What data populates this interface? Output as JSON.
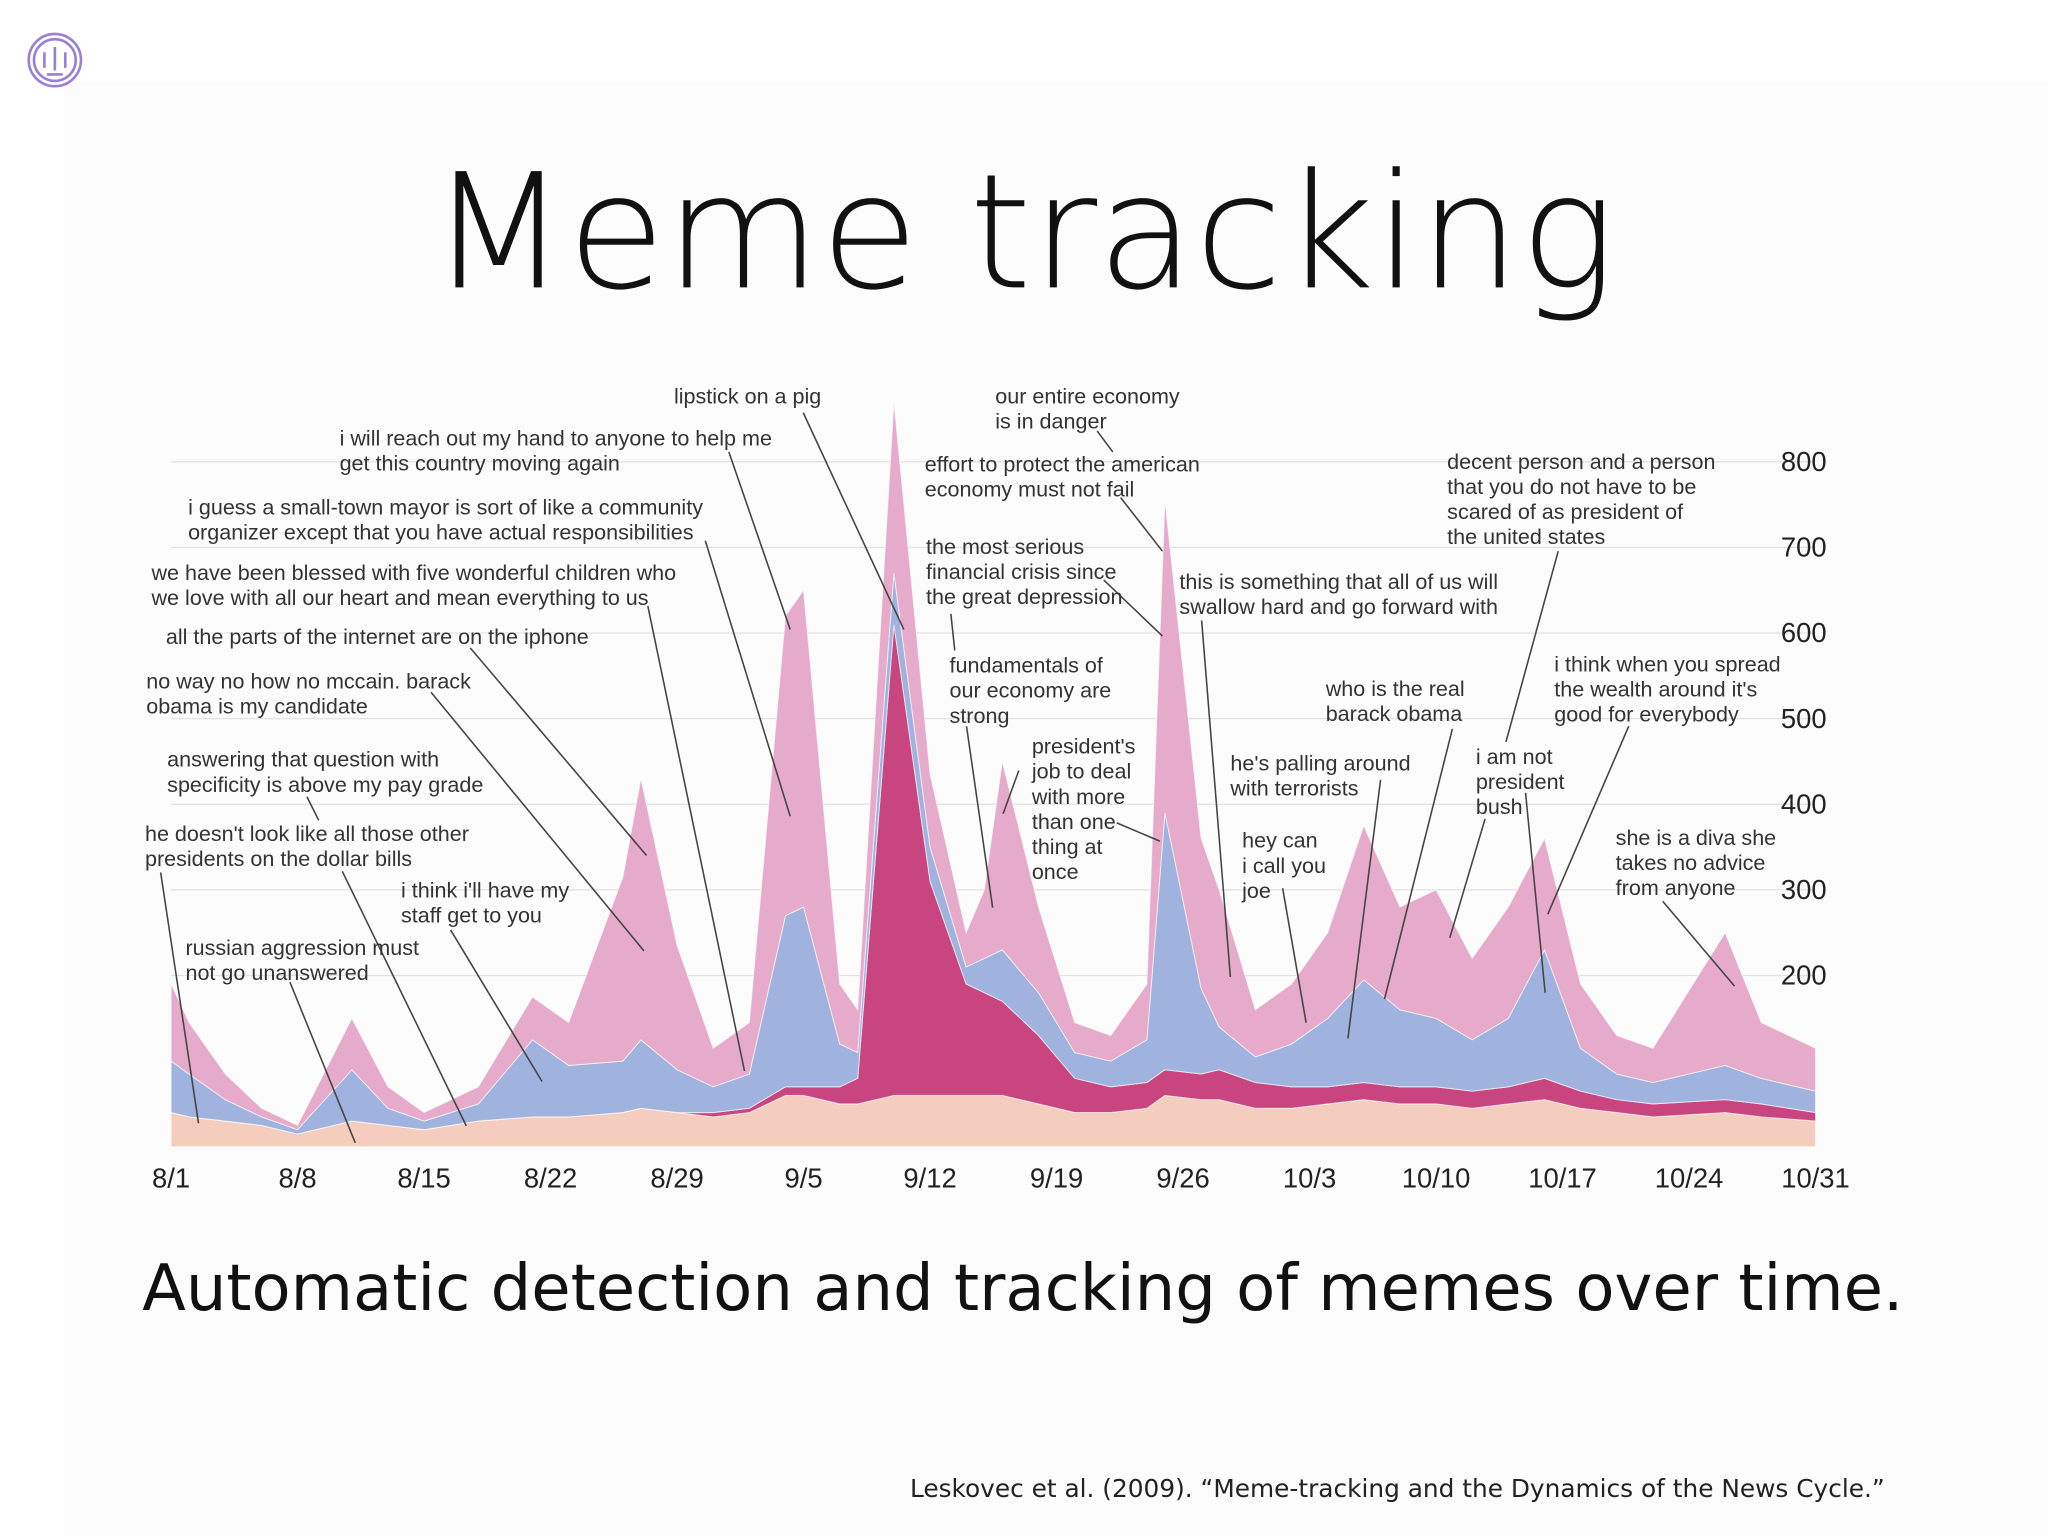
{
  "title": "Meme tracking",
  "subtitle": "Automatic detection and tracking of memes over time.",
  "citation": "Leskovec et al. (2009). “Meme-tracking and the Dynamics of the News Cycle.”",
  "chart_data": {
    "type": "area",
    "stacked": true,
    "x": [
      0,
      1,
      3,
      5,
      7,
      10,
      12,
      14,
      17,
      20,
      22,
      25,
      26,
      28,
      30,
      32,
      34,
      35,
      37,
      38,
      40,
      42,
      44,
      45,
      46,
      48,
      50,
      52,
      54,
      55,
      57,
      58,
      60,
      62,
      64,
      66,
      68,
      70,
      72,
      74,
      76,
      78,
      80,
      82,
      86,
      88,
      91
    ],
    "xlim": [
      0,
      91
    ],
    "xticks": [
      {
        "value": 0,
        "label": "8/1"
      },
      {
        "value": 7,
        "label": "8/8"
      },
      {
        "value": 14,
        "label": "8/15"
      },
      {
        "value": 21,
        "label": "8/22"
      },
      {
        "value": 28,
        "label": "8/29"
      },
      {
        "value": 35,
        "label": "9/5"
      },
      {
        "value": 42,
        "label": "9/12"
      },
      {
        "value": 49,
        "label": "9/19"
      },
      {
        "value": 56,
        "label": "9/26"
      },
      {
        "value": 63,
        "label": "10/3"
      },
      {
        "value": 70,
        "label": "10/10"
      },
      {
        "value": 77,
        "label": "10/17"
      },
      {
        "value": 84,
        "label": "10/24"
      },
      {
        "value": 91,
        "label": "10/31"
      }
    ],
    "ylim": [
      0,
      900
    ],
    "yticks": [
      200,
      300,
      400,
      500,
      600,
      700,
      800
    ],
    "grid": true,
    "series": [
      {
        "color": "#f4cdbf",
        "values": [
          40,
          35,
          30,
          25,
          15,
          30,
          25,
          20,
          30,
          35,
          35,
          40,
          45,
          40,
          35,
          40,
          60,
          60,
          50,
          50,
          60,
          60,
          60,
          60,
          60,
          50,
          40,
          40,
          45,
          60,
          55,
          55,
          45,
          45,
          50,
          55,
          50,
          50,
          45,
          50,
          55,
          45,
          40,
          35,
          40,
          35,
          30
        ]
      },
      {
        "color": "#c8457f",
        "values": [
          0,
          0,
          0,
          0,
          0,
          0,
          0,
          0,
          0,
          0,
          0,
          0,
          0,
          0,
          5,
          5,
          10,
          10,
          20,
          30,
          550,
          250,
          130,
          120,
          110,
          80,
          40,
          30,
          30,
          30,
          30,
          35,
          30,
          25,
          20,
          20,
          20,
          20,
          20,
          20,
          25,
          20,
          15,
          15,
          15,
          15,
          10
        ]
      },
      {
        "color": "#9fb3de",
        "values": [
          60,
          50,
          25,
          10,
          5,
          60,
          20,
          10,
          20,
          90,
          60,
          60,
          80,
          50,
          30,
          40,
          200,
          210,
          50,
          30,
          60,
          40,
          20,
          40,
          60,
          50,
          30,
          30,
          50,
          300,
          100,
          50,
          30,
          50,
          80,
          120,
          90,
          80,
          60,
          80,
          150,
          50,
          30,
          25,
          40,
          30,
          25
        ]
      },
      {
        "color": "#e6aacb",
        "values": [
          90,
          60,
          30,
          10,
          5,
          60,
          25,
          10,
          20,
          50,
          50,
          215,
          305,
          145,
          45,
          60,
          350,
          370,
          70,
          50,
          200,
          85,
          40,
          80,
          220,
          100,
          35,
          30,
          65,
          365,
          175,
          160,
          55,
          70,
          100,
          180,
          120,
          150,
          95,
          130,
          130,
          75,
          45,
          40,
          155,
          65,
          50
        ]
      }
    ],
    "annotations": [
      {
        "lines": [
          "lipstick on a pig"
        ]
      },
      {
        "lines": [
          "i will reach out my hand to anyone to help me",
          "get this country moving again"
        ]
      },
      {
        "lines": [
          "i guess a small-town mayor is sort of like a community",
          "organizer except that you have actual responsibilities"
        ]
      },
      {
        "lines": [
          "we have been blessed with five wonderful children who",
          "we love with all our heart and mean everything to us"
        ]
      },
      {
        "lines": [
          "all the parts of the internet are on the iphone"
        ]
      },
      {
        "lines": [
          "no way no how no mccain. barack",
          "obama is my candidate"
        ]
      },
      {
        "lines": [
          "answering that question with",
          "specificity is above my pay grade"
        ]
      },
      {
        "lines": [
          "he doesn't look like all those other",
          "presidents on the dollar bills"
        ]
      },
      {
        "lines": [
          "i think i'll have my",
          "staff get to you"
        ]
      },
      {
        "lines": [
          "russian aggression must",
          "not go unanswered"
        ]
      },
      {
        "lines": [
          "our entire economy",
          "is in danger"
        ]
      },
      {
        "lines": [
          "effort to protect the american",
          "economy must not fail"
        ]
      },
      {
        "lines": [
          "the most serious",
          "financial crisis since",
          "the great depression"
        ]
      },
      {
        "lines": [
          "fundamentals of",
          "our economy are",
          "strong"
        ]
      },
      {
        "lines": [
          "president's",
          "job to deal",
          "with more",
          "than one",
          "thing at",
          "once"
        ]
      },
      {
        "lines": [
          "this is something that all of us will",
          "swallow hard and go forward with"
        ]
      },
      {
        "lines": [
          "decent person and a person",
          "that you do not have to be",
          "scared of as president of",
          "the united states"
        ]
      },
      {
        "lines": [
          "i think when you spread",
          "the wealth around it's",
          "good for everybody"
        ]
      },
      {
        "lines": [
          "who is the real",
          "barack obama"
        ]
      },
      {
        "lines": [
          "he's palling around",
          "with terrorists"
        ]
      },
      {
        "lines": [
          "i am not",
          "president",
          "bush"
        ]
      },
      {
        "lines": [
          "hey can",
          "i call you",
          "joe"
        ]
      },
      {
        "lines": [
          "she is a diva she",
          "takes no advice",
          "from anyone"
        ]
      }
    ]
  }
}
